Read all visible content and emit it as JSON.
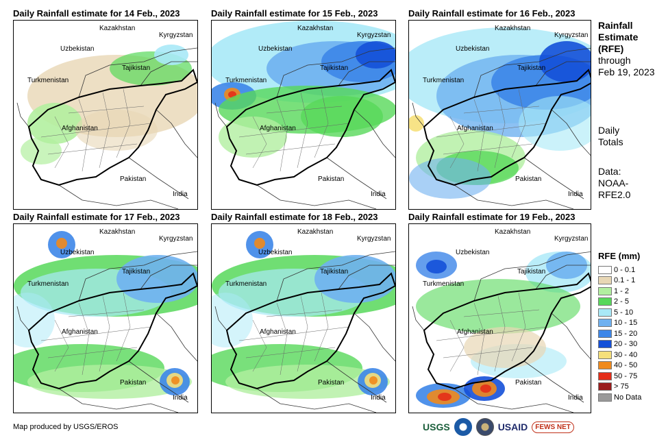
{
  "panels": [
    {
      "title": "Daily Rainfall estimate for 14 Feb., 2023",
      "labels": {
        "kazakhstan": "Kazakhstan",
        "kyrgyzstan": "Kyrgyzstan",
        "uzbekistan": "Uzbekistan",
        "tajikistan": "Tajikistan",
        "turkmenistan": "Turkmenistan",
        "afghanistan": "Afghanistan",
        "pakistan": "Pakistan",
        "india": "India"
      },
      "rain_level": "light"
    },
    {
      "title": "Daily Rainfall estimate for 15 Feb., 2023",
      "labels": {
        "kazakhstan": "Kazakhstan",
        "kyrgyzstan": "Kyrgyzstan",
        "uzbekistan": "Uzbekistan",
        "tajikistan": "Tajikistan",
        "turkmenistan": "Turkmenistan",
        "afghanistan": "Afghanistan",
        "pakistan": "Pakistan",
        "india": "India"
      },
      "rain_level": "heavy-north"
    },
    {
      "title": "Daily Rainfall estimate for 16 Feb., 2023",
      "labels": {
        "kazakhstan": "Kazakhstan",
        "kyrgyzstan": "Kyrgyzstan",
        "uzbekistan": "Uzbekistan",
        "tajikistan": "Tajikistan",
        "turkmenistan": "Turkmenistan",
        "afghanistan": "Afghanistan",
        "pakistan": "Pakistan",
        "india": "India"
      },
      "rain_level": "widespread"
    },
    {
      "title": "Daily Rainfall estimate for 17 Feb., 2023",
      "labels": {
        "kazakhstan": "Kazakhstan",
        "kyrgyzstan": "Kyrgyzstan",
        "uzbekistan": "Uzbekistan",
        "tajikistan": "Tajikistan",
        "turkmenistan": "Turkmenistan",
        "afghanistan": "Afghanistan",
        "pakistan": "Pakistan",
        "india": "India"
      },
      "rain_level": "moderate"
    },
    {
      "title": "Daily Rainfall estimate for 18 Feb., 2023",
      "labels": {
        "kazakhstan": "Kazakhstan",
        "kyrgyzstan": "Kyrgyzstan",
        "uzbekistan": "Uzbekistan",
        "tajikistan": "Tajikistan",
        "turkmenistan": "Turkmenistan",
        "afghanistan": "Afghanistan",
        "pakistan": "Pakistan",
        "india": "India"
      },
      "rain_level": "moderate"
    },
    {
      "title": "Daily Rainfall estimate for 19 Feb., 2023",
      "labels": {
        "kazakhstan": "Kazakhstan",
        "kyrgyzstan": "Kyrgyzstan",
        "uzbekistan": "Uzbekistan",
        "tajikistan": "Tajikistan",
        "turkmenistan": "Turkmenistan",
        "afghanistan": "Afghanistan",
        "pakistan": "Pakistan",
        "india": "India"
      },
      "rain_level": "south"
    }
  ],
  "side": {
    "title1": "Rainfall",
    "title2": "Estimate",
    "title3": "(RFE)",
    "through1": "through",
    "through2": "Feb 19, 2023",
    "daily1": "Daily",
    "daily2": "Totals",
    "data1": "Data:",
    "data2": "NOAA-",
    "data3": "RFE2.0"
  },
  "legend": {
    "title": "RFE (mm)",
    "items": [
      {
        "label": "0 - 0.1",
        "color": "#ffffff"
      },
      {
        "label": "0.1 - 1",
        "color": "#e8d7b5"
      },
      {
        "label": "1 - 2",
        "color": "#b2efa0"
      },
      {
        "label": "2 - 5",
        "color": "#57d85a"
      },
      {
        "label": "5 - 10",
        "color": "#a9e9f7"
      },
      {
        "label": "10 - 15",
        "color": "#6fb1f0"
      },
      {
        "label": "15 - 20",
        "color": "#3d86e8"
      },
      {
        "label": "20 - 30",
        "color": "#1450d8"
      },
      {
        "label": "30 - 40",
        "color": "#f6e07a"
      },
      {
        "label": "40 - 50",
        "color": "#f08a1c"
      },
      {
        "label": "50 - 75",
        "color": "#e42d18"
      },
      {
        "label": "> 75",
        "color": "#9a1c1c"
      },
      {
        "label": "No Data",
        "color": "#9a9a9a"
      }
    ]
  },
  "footer": "Map produced by USGS/EROS",
  "logos": {
    "usgs": "USGS",
    "usaid": "USAID",
    "fews": "FEWS NET"
  }
}
